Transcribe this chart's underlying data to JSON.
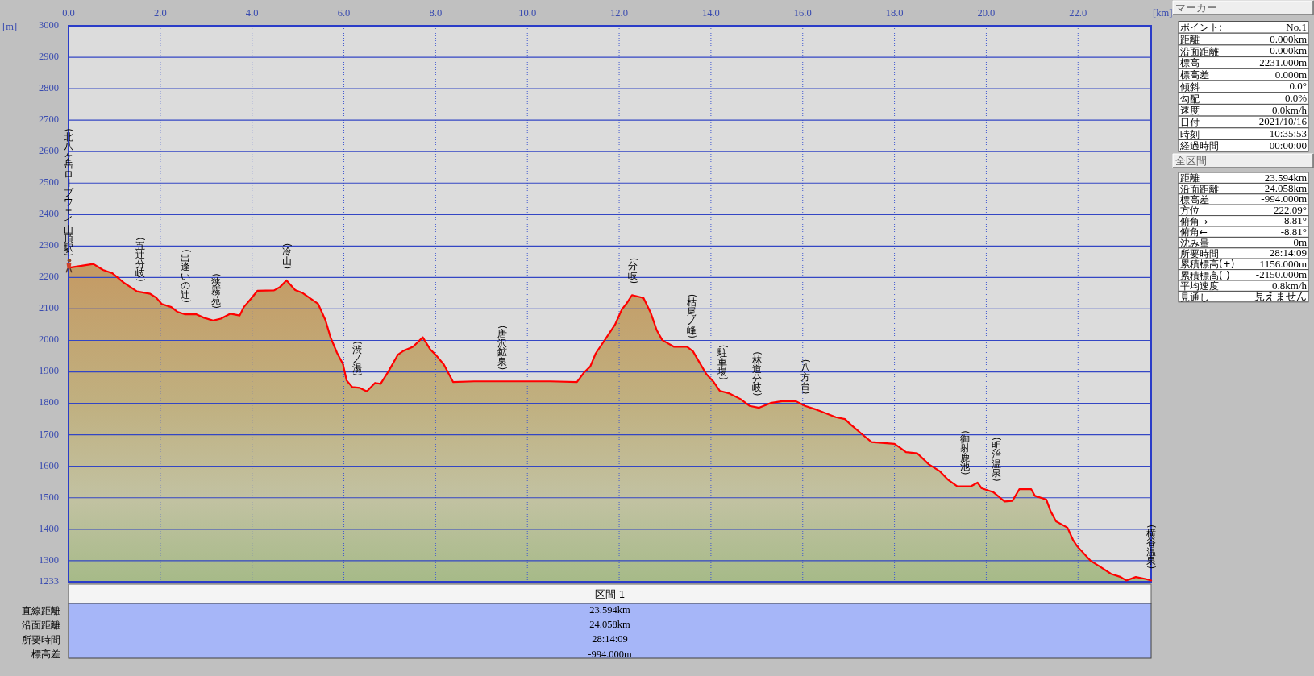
{
  "chart_data": [
    {
      "type": "area",
      "xlabel": "[km]",
      "ylabel": "[m]",
      "xlim": [
        0,
        23.594
      ],
      "ylim": [
        1233,
        3000
      ],
      "xticks": [
        {
          "value": 0,
          "label": "0.0"
        },
        {
          "value": 2,
          "label": "2.0"
        },
        {
          "value": 4,
          "label": "4.0"
        },
        {
          "value": 6,
          "label": "6.0"
        },
        {
          "value": 8,
          "label": "8.0"
        },
        {
          "value": 10,
          "label": "10.0"
        },
        {
          "value": 12,
          "label": "12.0"
        },
        {
          "value": 14,
          "label": "14.0"
        },
        {
          "value": 16,
          "label": "16.0"
        },
        {
          "value": 18,
          "label": "18.0"
        },
        {
          "value": 20,
          "label": "20.0"
        },
        {
          "value": 22,
          "label": "22.0"
        }
      ],
      "yticks": [
        1233,
        1300,
        1400,
        1500,
        1600,
        1700,
        1800,
        1900,
        2000,
        2100,
        2200,
        2300,
        2400,
        2500,
        2600,
        2700,
        2800,
        2900,
        3000
      ],
      "grid": true,
      "x": [
        0,
        0.54,
        0.75,
        0.95,
        1.2,
        1.49,
        1.78,
        1.91,
        2.03,
        2.24,
        2.37,
        2.53,
        2.78,
        2.95,
        3.15,
        3.32,
        3.53,
        3.73,
        3.82,
        3.98,
        4.12,
        4.48,
        4.61,
        4.75,
        4.94,
        5.1,
        5.44,
        5.6,
        5.71,
        5.85,
        5.98,
        6.06,
        6.18,
        6.35,
        6.5,
        6.68,
        6.8,
        6.97,
        7.18,
        7.3,
        7.51,
        7.72,
        7.88,
        8.01,
        8.18,
        8.38,
        8.84,
        9.67,
        10.5,
        11.08,
        11.24,
        11.37,
        11.49,
        11.7,
        11.91,
        12.06,
        12.16,
        12.28,
        12.53,
        12.69,
        12.82,
        12.94,
        13.19,
        13.48,
        13.61,
        13.73,
        13.9,
        14.06,
        14.19,
        14.39,
        14.64,
        14.84,
        15.05,
        15.3,
        15.55,
        15.85,
        16.05,
        16.3,
        16.72,
        16.92,
        17.05,
        17.3,
        17.5,
        18.0,
        18.12,
        18.25,
        18.5,
        18.75,
        18.99,
        19.16,
        19.37,
        19.66,
        19.81,
        19.9,
        20.15,
        20.4,
        20.57,
        20.72,
        20.98,
        21.06,
        21.31,
        21.4,
        21.52,
        21.77,
        21.89,
        21.98,
        22.27,
        22.47,
        22.72,
        22.93,
        23.05,
        23.26,
        23.47,
        23.594
      ],
      "series": [
        {
          "color": "#ff0000",
          "values": [
            2231,
            2243,
            2224,
            2214,
            2184,
            2156,
            2148,
            2136,
            2116,
            2106,
            2091,
            2083,
            2083,
            2072,
            2063,
            2069,
            2085,
            2079,
            2106,
            2133,
            2158,
            2159,
            2170,
            2191,
            2160,
            2151,
            2116,
            2064,
            2010,
            1961,
            1925,
            1873,
            1852,
            1849,
            1838,
            1865,
            1862,
            1901,
            1955,
            1967,
            1980,
            2010,
            1972,
            1953,
            1923,
            1868,
            1870,
            1870,
            1870,
            1868,
            1899,
            1917,
            1959,
            2004,
            2050,
            2099,
            2117,
            2144,
            2135,
            2087,
            2032,
            2001,
            1980,
            1980,
            1965,
            1935,
            1893,
            1868,
            1840,
            1832,
            1814,
            1792,
            1786,
            1801,
            1807,
            1807,
            1792,
            1780,
            1756,
            1750,
            1732,
            1701,
            1677,
            1671,
            1659,
            1645,
            1641,
            1606,
            1584,
            1558,
            1536,
            1536,
            1548,
            1530,
            1518,
            1488,
            1490,
            1527,
            1527,
            1506,
            1494,
            1458,
            1425,
            1405,
            1366,
            1346,
            1300,
            1282,
            1258,
            1248,
            1237,
            1248,
            1242,
            1237
          ]
        }
      ],
      "annotations": [
        {
          "text": "(北八ヶ岳ロープウェイ山頂駅)",
          "x": 0,
          "y": 2231
        },
        {
          "text": "(五辻分岐)",
          "x": 1.56,
          "y": 2150
        },
        {
          "text": "(出逢いの辻)",
          "x": 2.55,
          "y": 2083
        },
        {
          "text": "(狭霧苑)",
          "x": 3.21,
          "y": 2065
        },
        {
          "text": "(冷山)",
          "x": 4.76,
          "y": 2190
        },
        {
          "text": "(渋ノ湯)",
          "x": 6.28,
          "y": 1850
        },
        {
          "text": "(唐沢鉱泉)",
          "x": 9.44,
          "y": 1870
        },
        {
          "text": "(分岐)",
          "x": 12.3,
          "y": 2144
        },
        {
          "text": "(枯尾ノ峰)",
          "x": 13.57,
          "y": 1970
        },
        {
          "text": "(駐車場)",
          "x": 14.25,
          "y": 1838
        },
        {
          "text": "(林道分岐)",
          "x": 15.0,
          "y": 1787
        },
        {
          "text": "(八方台)",
          "x": 16.05,
          "y": 1792
        },
        {
          "text": "(御射鹿池)",
          "x": 19.53,
          "y": 1536
        },
        {
          "text": "(明治温泉)",
          "x": 20.22,
          "y": 1515
        },
        {
          "text": "(横谷温泉)",
          "x": 23.594,
          "y": 1237
        }
      ]
    },
    {
      "type": "other",
      "title": "マーカー",
      "annotations": [
        "ポイント:",
        "No.1",
        "距離",
        "0.000km",
        "沿面距離",
        "0.000km",
        "標高",
        "2231.000m",
        "標高差",
        "0.000m",
        "傾斜",
        "0.0°",
        "勾配",
        "0.0%",
        "速度",
        "0.0km/h",
        "日付",
        "2021/10/16",
        "時刻",
        "10:35:53",
        "経過時間",
        "00:00:00"
      ]
    },
    {
      "type": "other",
      "title": "全区間",
      "annotations": [
        "距離",
        "23.594km",
        "沿面距離",
        "24.058km",
        "標高差",
        "-994.000m",
        "方位",
        "222.09°",
        "俯角→",
        "8.81°",
        "俯角←",
        "-8.81°",
        "沈み量",
        "-0m",
        "所要時間",
        "28:14:09",
        "累積標高(+)",
        "1156.000m",
        "累積標高(-)",
        "-2150.000m",
        "平均速度",
        "0.8km/h",
        "見通し",
        "見えません"
      ]
    },
    {
      "type": "other",
      "title": "区間 1",
      "annotations": [
        "直線距離",
        "23.594km",
        "沿面距離",
        "24.058km",
        "所要時間",
        "28:14:09",
        "標高差",
        "-994.000m"
      ]
    }
  ]
}
